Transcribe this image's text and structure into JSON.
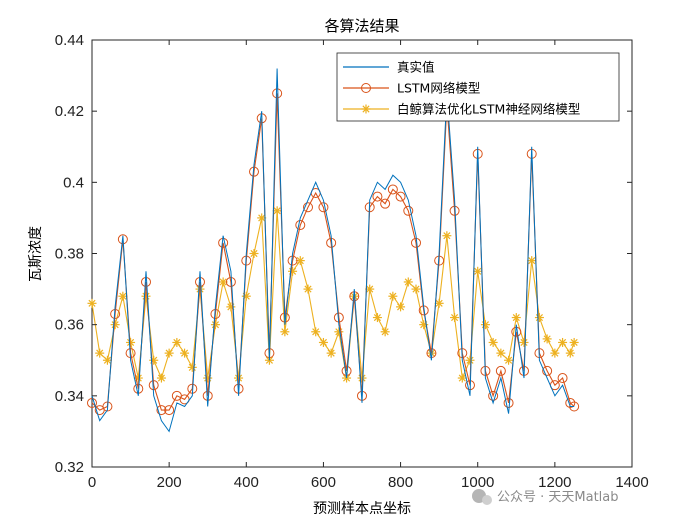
{
  "chart_data": {
    "type": "line",
    "title": "各算法结果",
    "xlabel": "预测样本点坐标",
    "ylabel": "瓦斯浓度",
    "xlim": [
      0,
      1400
    ],
    "ylim": [
      0.32,
      0.44
    ],
    "xticks": [
      "0",
      "200",
      "400",
      "600",
      "800",
      "1000",
      "1200",
      "1400"
    ],
    "yticks": [
      "0.32",
      "0.34",
      "0.36",
      "0.38",
      "0.4",
      "0.42",
      "0.44"
    ],
    "grid": false,
    "legend_position": "top-right",
    "series": [
      {
        "name": "真实值",
        "color": "#0072BD",
        "marker": "none",
        "x": [
          0,
          20,
          40,
          60,
          80,
          100,
          120,
          140,
          160,
          180,
          200,
          220,
          240,
          260,
          280,
          300,
          320,
          340,
          360,
          380,
          400,
          420,
          440,
          460,
          480,
          500,
          520,
          540,
          560,
          580,
          600,
          620,
          640,
          660,
          680,
          700,
          720,
          740,
          760,
          780,
          800,
          820,
          840,
          860,
          880,
          900,
          920,
          940,
          960,
          980,
          1000,
          1020,
          1040,
          1060,
          1080,
          1100,
          1120,
          1140,
          1160,
          1180,
          1200,
          1220,
          1240,
          1250
        ],
        "y": [
          0.34,
          0.333,
          0.336,
          0.365,
          0.385,
          0.35,
          0.34,
          0.375,
          0.34,
          0.333,
          0.33,
          0.338,
          0.337,
          0.34,
          0.375,
          0.337,
          0.365,
          0.385,
          0.375,
          0.34,
          0.38,
          0.405,
          0.42,
          0.35,
          0.432,
          0.36,
          0.38,
          0.39,
          0.395,
          0.4,
          0.395,
          0.385,
          0.36,
          0.345,
          0.37,
          0.338,
          0.395,
          0.4,
          0.398,
          0.402,
          0.4,
          0.395,
          0.385,
          0.365,
          0.35,
          0.38,
          0.425,
          0.395,
          0.35,
          0.34,
          0.41,
          0.345,
          0.338,
          0.345,
          0.335,
          0.36,
          0.345,
          0.41,
          0.35,
          0.345,
          0.34,
          0.343,
          0.337,
          0.337
        ]
      },
      {
        "name": "LSTM网络模型",
        "color": "#D95319",
        "marker": "circle",
        "x": [
          0,
          20,
          40,
          60,
          80,
          100,
          120,
          140,
          160,
          180,
          200,
          220,
          240,
          260,
          280,
          300,
          320,
          340,
          360,
          380,
          400,
          420,
          440,
          460,
          480,
          500,
          520,
          540,
          560,
          580,
          600,
          620,
          640,
          660,
          680,
          700,
          720,
          740,
          760,
          780,
          800,
          820,
          840,
          860,
          880,
          900,
          920,
          940,
          960,
          980,
          1000,
          1020,
          1040,
          1060,
          1080,
          1100,
          1120,
          1140,
          1160,
          1180,
          1200,
          1220,
          1240,
          1250
        ],
        "y": [
          0.338,
          0.336,
          0.337,
          0.363,
          0.384,
          0.352,
          0.342,
          0.372,
          0.343,
          0.336,
          0.336,
          0.34,
          0.339,
          0.342,
          0.372,
          0.34,
          0.363,
          0.383,
          0.372,
          0.342,
          0.378,
          0.403,
          0.418,
          0.352,
          0.425,
          0.362,
          0.378,
          0.388,
          0.393,
          0.397,
          0.393,
          0.383,
          0.362,
          0.347,
          0.368,
          0.34,
          0.393,
          0.396,
          0.394,
          0.398,
          0.396,
          0.392,
          0.383,
          0.364,
          0.352,
          0.378,
          0.422,
          0.392,
          0.352,
          0.343,
          0.408,
          0.347,
          0.34,
          0.347,
          0.338,
          0.358,
          0.347,
          0.408,
          0.352,
          0.347,
          0.343,
          0.345,
          0.338,
          0.337
        ]
      },
      {
        "name": "白鲸算法优化LSTM神经网络模型",
        "color": "#EDB120",
        "marker": "asterisk",
        "x": [
          0,
          20,
          40,
          60,
          80,
          100,
          120,
          140,
          160,
          180,
          200,
          220,
          240,
          260,
          280,
          300,
          320,
          340,
          360,
          380,
          400,
          420,
          440,
          460,
          480,
          500,
          520,
          540,
          560,
          580,
          600,
          620,
          640,
          660,
          680,
          700,
          720,
          740,
          760,
          780,
          800,
          820,
          840,
          860,
          880,
          900,
          920,
          940,
          960,
          980,
          1000,
          1020,
          1040,
          1060,
          1080,
          1100,
          1120,
          1140,
          1160,
          1180,
          1200,
          1220,
          1240,
          1250
        ],
        "y": [
          0.366,
          0.352,
          0.35,
          0.36,
          0.368,
          0.355,
          0.345,
          0.368,
          0.35,
          0.345,
          0.352,
          0.355,
          0.352,
          0.348,
          0.37,
          0.345,
          0.36,
          0.372,
          0.365,
          0.345,
          0.368,
          0.38,
          0.39,
          0.35,
          0.392,
          0.358,
          0.375,
          0.378,
          0.37,
          0.358,
          0.355,
          0.352,
          0.358,
          0.345,
          0.368,
          0.345,
          0.37,
          0.362,
          0.358,
          0.368,
          0.365,
          0.372,
          0.37,
          0.36,
          0.352,
          0.366,
          0.385,
          0.362,
          0.345,
          0.35,
          0.375,
          0.36,
          0.355,
          0.352,
          0.35,
          0.362,
          0.355,
          0.378,
          0.362,
          0.356,
          0.352,
          0.355,
          0.352,
          0.355
        ]
      }
    ]
  },
  "watermark": "公众号 · 天天Matlab"
}
